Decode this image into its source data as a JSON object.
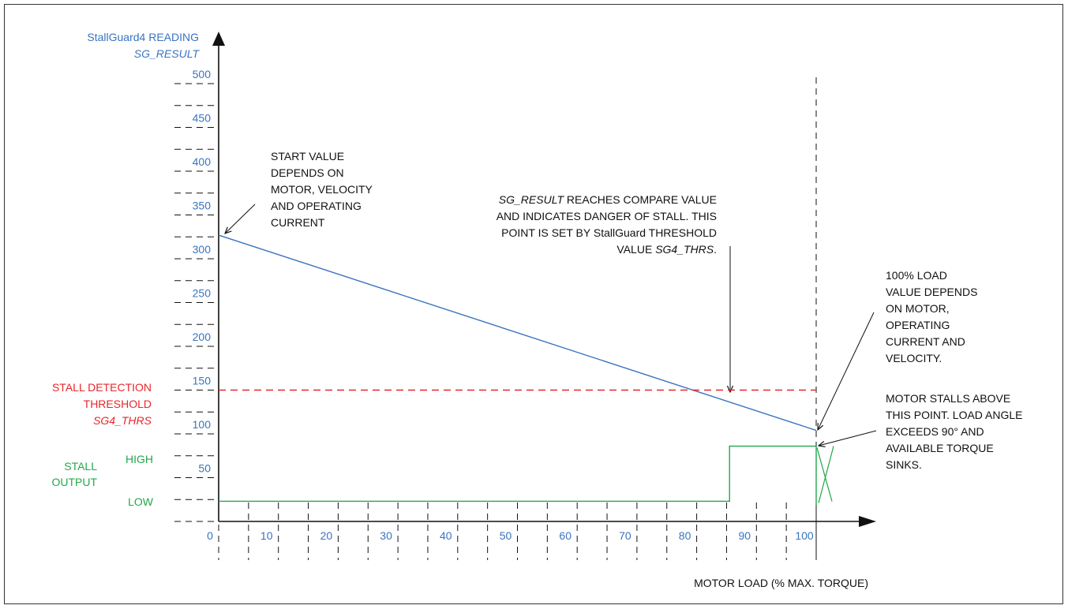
{
  "chart_data": {
    "type": "line",
    "title": "",
    "ylabel": "StallGuard4 READING",
    "ylabel_sub": "SG_RESULT",
    "xlabel": "MOTOR LOAD (% MAX. TORQUE)",
    "xlim": [
      0,
      110
    ],
    "ylim": [
      0,
      525
    ],
    "x_ticks": [
      0,
      10,
      20,
      30,
      40,
      50,
      60,
      70,
      80,
      90,
      100
    ],
    "y_ticks": [
      50,
      100,
      150,
      200,
      250,
      300,
      350,
      400,
      450,
      500
    ],
    "colors": {
      "sg_result": "#3a74c0",
      "threshold": "#e8262b",
      "stall_output": "#22a84a"
    },
    "series": [
      {
        "key": "sg_result",
        "x": [
          0,
          100
        ],
        "y": [
          327,
          104
        ]
      },
      {
        "key": "threshold",
        "x": [
          0,
          100
        ],
        "y": [
          150,
          150
        ]
      },
      {
        "key": "stall_output",
        "x": [
          0,
          85.5,
          85.5,
          100
        ],
        "y": [
          23,
          23,
          86,
          86
        ]
      }
    ],
    "threshold_label": [
      "STALL DETECTION",
      "THRESHOLD"
    ],
    "threshold_sub": "SG4_THRS",
    "stall_output_label": [
      "STALL",
      "OUTPUT"
    ],
    "stall_high": "HIGH",
    "stall_low": "LOW",
    "annotations": {
      "start_value": [
        "START VALUE",
        "DEPENDS ON",
        "MOTOR, VELOCITY",
        "AND OPERATING",
        "CURRENT"
      ],
      "compare_1_italic": "SG_RESULT",
      "compare_1_rest": " REACHES COMPARE VALUE",
      "compare_2": "AND INDICATES DANGER OF STALL. THIS",
      "compare_3": "POINT IS SET BY StallGuard THRESHOLD",
      "compare_4_a": "VALUE ",
      "compare_4_italic": "SG4_THRS",
      "compare_4_b": ".",
      "full_load": [
        "100% LOAD",
        "VALUE DEPENDS",
        "ON MOTOR,",
        "OPERATING",
        "CURRENT AND",
        "VELOCITY."
      ],
      "stall": [
        "MOTOR STALLS ABOVE",
        "THIS POINT. LOAD ANGLE",
        "EXCEEDS 90° AND",
        "AVAILABLE TORQUE",
        "SINKS."
      ]
    }
  }
}
